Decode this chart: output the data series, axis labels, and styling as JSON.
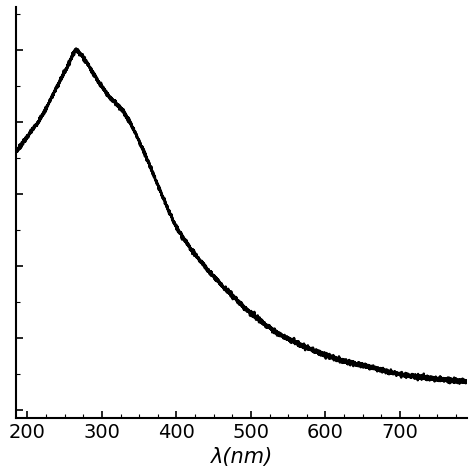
{
  "title": "",
  "xlabel": "λ(nm)",
  "ylabel": "",
  "xlim": [
    185,
    790
  ],
  "x_ticks": [
    200,
    300,
    400,
    500,
    600,
    700
  ],
  "line_color": "#000000",
  "line_width": 1.8,
  "background_color": "#ffffff",
  "xlabel_fontsize": 15,
  "tick_fontsize": 14,
  "spectrum_points_x": [
    185,
    200,
    220,
    240,
    255,
    265,
    275,
    290,
    310,
    325,
    340,
    360,
    380,
    400,
    430,
    460,
    500,
    540,
    580,
    620,
    660,
    700,
    740,
    790
  ],
  "spectrum_points_y": [
    0.72,
    0.76,
    0.82,
    0.9,
    0.96,
    1.0,
    0.98,
    0.93,
    0.87,
    0.84,
    0.79,
    0.7,
    0.6,
    0.51,
    0.42,
    0.35,
    0.27,
    0.21,
    0.17,
    0.14,
    0.12,
    0.1,
    0.09,
    0.08
  ]
}
